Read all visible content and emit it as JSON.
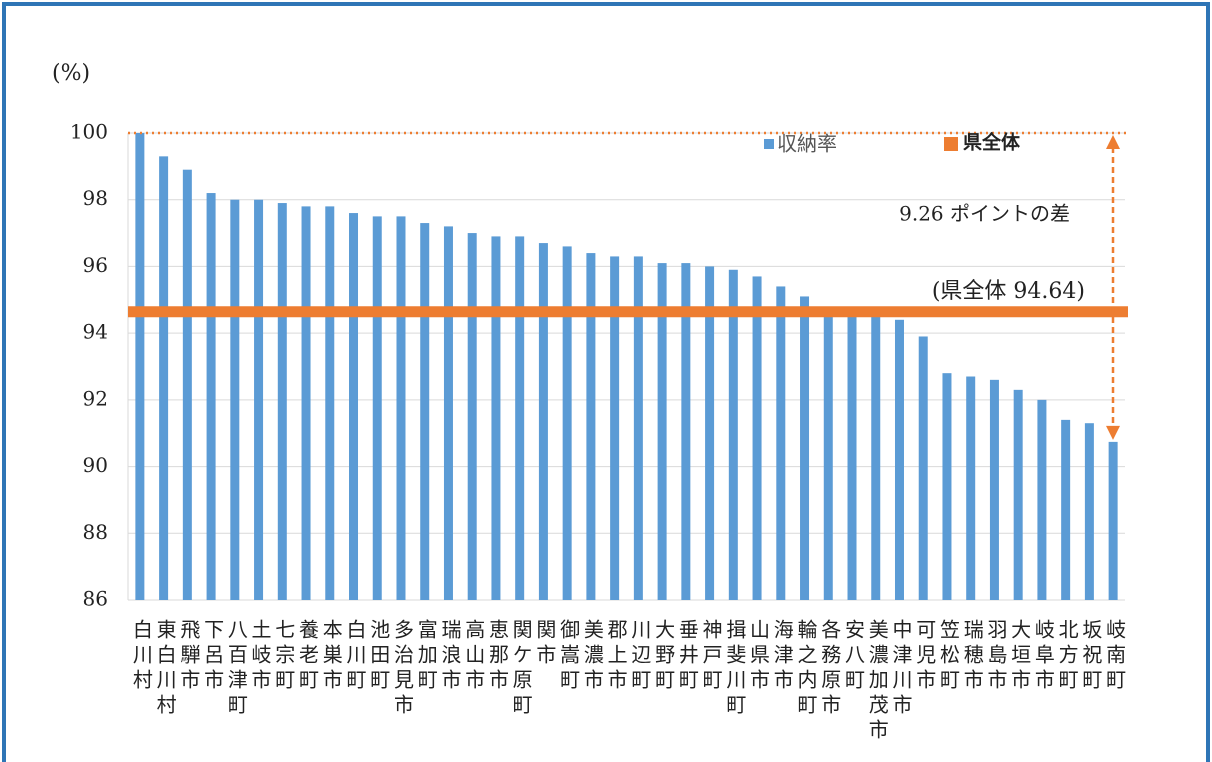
{
  "chart_data": {
    "type": "bar",
    "unit_label": "(%)",
    "categories": [
      "白川村",
      "東白川村",
      "飛騨市",
      "下呂市",
      "八百津町",
      "土岐市",
      "七宗町",
      "養老町",
      "本巣市",
      "白川町",
      "池田町",
      "多治見市",
      "富加町",
      "瑞浪市",
      "高山市",
      "恵那市",
      "関ケ原町",
      "関市",
      "御嵩町",
      "美濃市",
      "郡上市",
      "川辺町",
      "大野町",
      "垂井町",
      "神戸町",
      "揖斐川町",
      "山県市",
      "海津市",
      "輪之内町",
      "各務原市",
      "安八町",
      "美濃加茂市",
      "中津川市",
      "可児市",
      "笠松町",
      "瑞穂市",
      "羽島市",
      "大垣市",
      "岐阜市",
      "北方町",
      "坂祝町",
      "岐南町"
    ],
    "series": [
      {
        "name": "収納率",
        "color": "#5b9bd5",
        "values": [
          100,
          99.3,
          98.9,
          98.2,
          98.0,
          98.0,
          97.9,
          97.8,
          97.8,
          97.6,
          97.5,
          97.5,
          97.3,
          97.2,
          97.0,
          96.9,
          96.9,
          96.7,
          96.6,
          96.4,
          96.3,
          96.3,
          96.1,
          96.1,
          96.0,
          95.9,
          95.7,
          95.4,
          95.1,
          94.5,
          94.5,
          94.5,
          94.4,
          93.9,
          92.8,
          92.7,
          92.6,
          92.3,
          92.0,
          91.4,
          91.3,
          90.74
        ]
      }
    ],
    "reference_line": {
      "name": "県全体",
      "color": "#ed7d31",
      "value": 94.64,
      "label": "(県全体 94.64)"
    },
    "difference_annotation": "9.26 ポイントの差",
    "ylim": [
      86,
      100
    ],
    "yticks": [
      86,
      88,
      90,
      92,
      94,
      96,
      98,
      100
    ],
    "grid": true
  }
}
